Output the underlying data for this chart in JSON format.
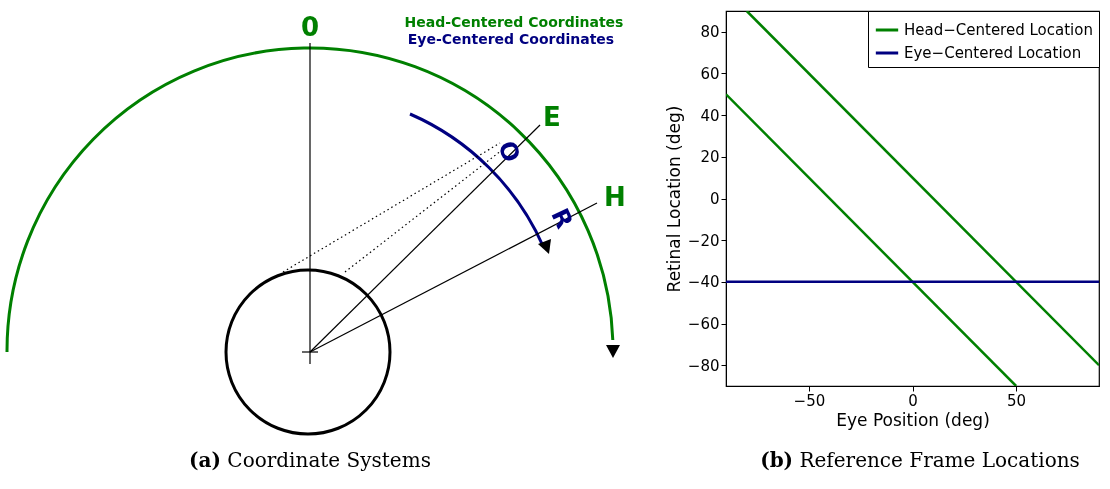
{
  "chart_data": [
    {
      "type": "other",
      "annotations": [
        "0",
        "E",
        "H",
        "O",
        "R",
        "Head-Centered Coordinates",
        "Eye-Centered Coordinates",
        "(a) Coordinate Systems"
      ]
    },
    {
      "type": "line",
      "xlabel": "Eye Position (deg)",
      "ylabel": "Retinal Location (deg)",
      "series": [
        {
          "name": "Head−Centered Location",
          "color": "#008000",
          "x": [
            -90,
            50
          ],
          "values": [
            50,
            -90
          ]
        },
        {
          "color": "#008000",
          "x": [
            -80,
            90
          ],
          "values": [
            90,
            -80
          ]
        },
        {
          "name": "Eye−Centered Location",
          "color": "#000080",
          "x": [
            -90,
            90
          ],
          "values": [
            -40,
            -40
          ]
        }
      ],
      "xlim": [
        -90,
        90
      ],
      "ylim": [
        -90,
        90
      ],
      "xticks": [
        -50,
        0,
        50
      ],
      "yticks": [
        -80,
        -60,
        -40,
        -20,
        0,
        20,
        40,
        60,
        80
      ],
      "legend": "top right",
      "annotations": [
        "(b) Reference Frame Locations"
      ]
    }
  ]
}
